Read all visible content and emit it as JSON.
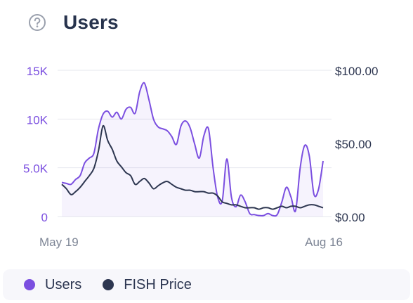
{
  "header": {
    "title": "Users",
    "help_icon": "question-circle-icon"
  },
  "colors": {
    "users": "#7b4fe0",
    "fish_price": "#2d3650",
    "grid": "#e6e7ee",
    "axis_text": "#7d8595"
  },
  "chart_data": {
    "type": "area",
    "x_labels": [
      "May 19",
      "Aug 16"
    ],
    "left_axis": {
      "ticks": [
        "0",
        "5.0K",
        "10K",
        "15K"
      ],
      "range": [
        0,
        15000
      ]
    },
    "right_axis": {
      "ticks": [
        "$0.00",
        "$50.00",
        "$100.00"
      ],
      "range": [
        0,
        100
      ]
    },
    "grid": true,
    "legend_position": "bottom",
    "series": [
      {
        "name": "Users",
        "axis": "left",
        "values": [
          3500,
          3400,
          3300,
          3800,
          4200,
          5500,
          6000,
          6500,
          9000,
          10500,
          10800,
          10200,
          10700,
          10000,
          11000,
          11200,
          10600,
          12800,
          13700,
          12000,
          10000,
          9200,
          9000,
          8800,
          8200,
          7400,
          9300,
          9800,
          9100,
          7400,
          6000,
          8300,
          9000,
          5000,
          2000,
          1600,
          5900,
          2000,
          1000,
          2200,
          1500,
          300,
          200,
          100,
          100,
          300,
          100,
          200,
          1500,
          3000,
          2000,
          600,
          5000,
          7300,
          6200,
          2300,
          2800,
          5700
        ]
      },
      {
        "name": "FISH Price",
        "axis": "right",
        "values": [
          22,
          19,
          15,
          17,
          20,
          24,
          28,
          33,
          45,
          62,
          52,
          46,
          38,
          34,
          30,
          28,
          22,
          24,
          26,
          23,
          19,
          21,
          23,
          24,
          22,
          20,
          19,
          18,
          18,
          17,
          17,
          17,
          16,
          16,
          14,
          10,
          9,
          8,
          8,
          7,
          6,
          6,
          6,
          5,
          6,
          6,
          5,
          6,
          7,
          6,
          7,
          7,
          6,
          7,
          8,
          8,
          7,
          6
        ]
      }
    ]
  },
  "legend": {
    "items": [
      {
        "label": "Users",
        "color": "#7b4fe0"
      },
      {
        "label": "FISH Price",
        "color": "#2d3650"
      }
    ]
  }
}
